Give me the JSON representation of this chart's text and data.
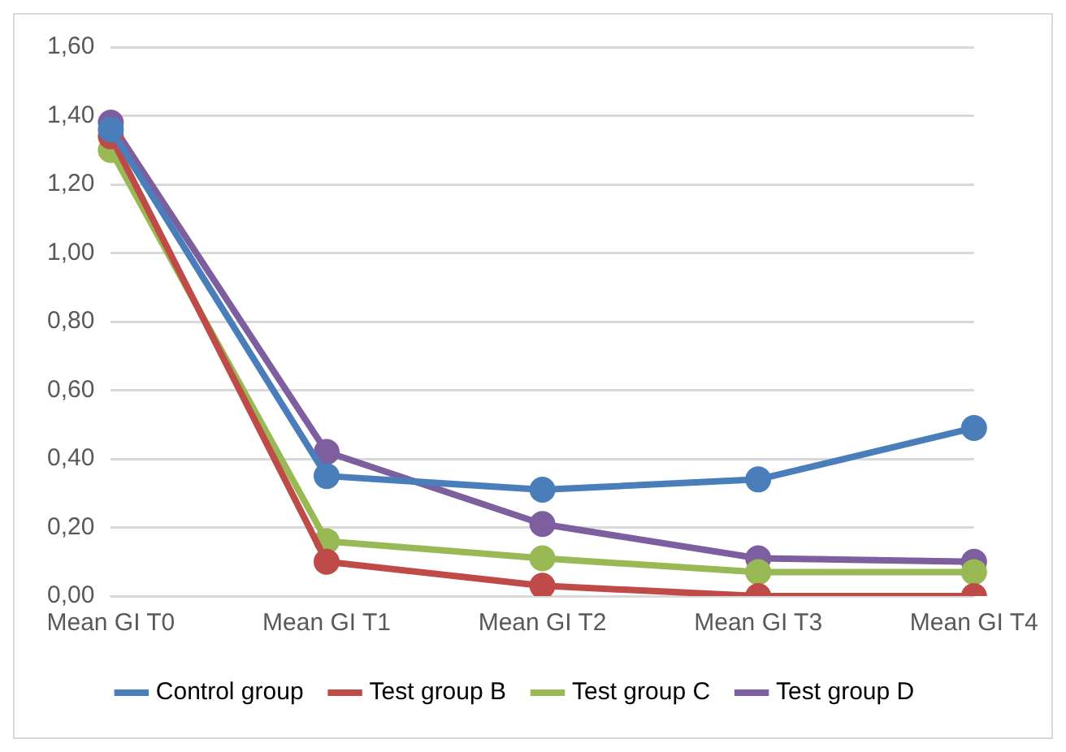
{
  "chart_data": {
    "type": "line",
    "categories": [
      "Mean GI T0",
      "Mean GI T1",
      "Mean GI T2",
      "Mean GI T3",
      "Mean GI T4"
    ],
    "series": [
      {
        "name": "Control group",
        "color": "#4a7ebb",
        "values": [
          1.36,
          0.35,
          0.31,
          0.34,
          0.49
        ]
      },
      {
        "name": "Test group B",
        "color": "#be4b48",
        "values": [
          1.34,
          0.1,
          0.03,
          0.0,
          0.0
        ]
      },
      {
        "name": "Test group C",
        "color": "#98b954",
        "values": [
          1.3,
          0.16,
          0.11,
          0.07,
          0.07
        ]
      },
      {
        "name": "Test group D",
        "color": "#7d5fa0",
        "values": [
          1.38,
          0.42,
          0.21,
          0.11,
          0.1
        ]
      }
    ],
    "ylim": [
      0,
      1.6
    ],
    "yticks": [
      {
        "value": 0,
        "label": "0,00"
      },
      {
        "value": 0.2,
        "label": "0,20"
      },
      {
        "value": 0.4,
        "label": "0,40"
      },
      {
        "value": 0.6,
        "label": "0,60"
      },
      {
        "value": 0.8,
        "label": "0,80"
      },
      {
        "value": 1.0,
        "label": "1,00"
      },
      {
        "value": 1.2,
        "label": "1,20"
      },
      {
        "value": 1.4,
        "label": "1,40"
      },
      {
        "value": 1.6,
        "label": "1,60"
      }
    ],
    "grid": "y",
    "legend": "bottom",
    "marker": "circle",
    "line_style": "solid"
  }
}
